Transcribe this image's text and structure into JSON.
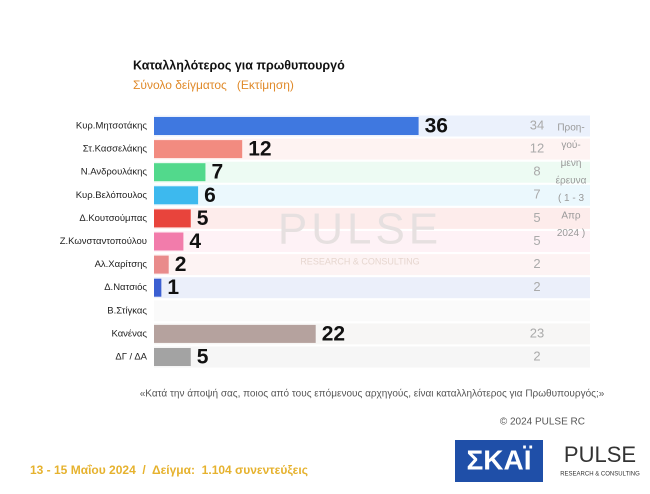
{
  "chart_data": {
    "type": "hbar",
    "title": "Καταλληλότερος για πρωθυπουργό",
    "subtitle": "Σύνολο δείγματος   (Εκτίμηση)",
    "categories": [
      "Κυρ.Μητσοτάκης",
      "Στ.Κασσελάκης",
      "Ν.Ανδρουλάκης",
      "Κυρ.Βελόπουλος",
      "Δ.Κουτσούμπας",
      "Ζ.Κωνσταντοπούλου",
      "Αλ.Χαρίτσης",
      "Δ.Νατσιός",
      "Β.Στίγκας",
      "Κανένας",
      "ΔΓ / ΔΑ"
    ],
    "values": [
      36,
      12,
      7,
      6,
      5,
      4,
      2,
      1,
      null,
      22,
      5
    ],
    "colors": [
      "#3f78e0",
      "#f28b80",
      "#52d98c",
      "#3db9ee",
      "#e8443c",
      "#f27cab",
      "#e98b8b",
      "#3b5fd2",
      "#cccccc",
      "#b5a29e",
      "#a3a3a3"
    ],
    "previous_values": [
      34,
      12,
      8,
      7,
      5,
      5,
      2,
      2,
      null,
      23,
      2
    ],
    "previous_note": [
      "Προη-",
      "γού-",
      "μενη",
      "έρευνα",
      "( 1 - 3",
      "Απρ",
      "2024 )"
    ],
    "question": "«Κατά την άποψή σας, ποιος από τους επόμενους αρχηγούς, είναι καταλληλότερος για Πρωθυπουργός;»",
    "copyright": "© 2024 PULSE RC",
    "footer": "13 - 15 Μαΐου 2024  /  Δείγμα:  1.104 συνεντεύξεις",
    "watermark": [
      "PULSE",
      "RESEARCH & CONSULTING"
    ],
    "logos": [
      "ΣΚΑΪ",
      "PULSE",
      "RESEARCH & CONSULTING"
    ]
  }
}
